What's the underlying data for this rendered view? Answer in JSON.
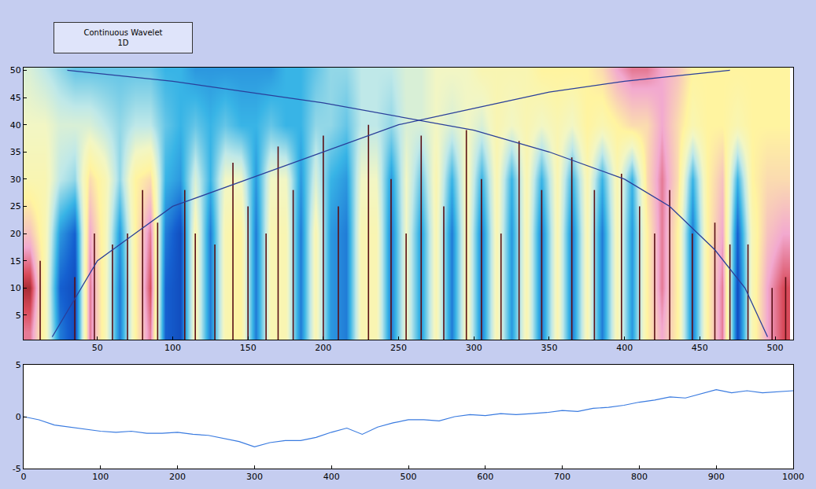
{
  "title": "Continuous Wavelet 1D",
  "chart_data": [
    {
      "type": "heatmap",
      "x": [
        5,
        15,
        25,
        35,
        45,
        55,
        65,
        75,
        85,
        95,
        105,
        115,
        125,
        135,
        145,
        155,
        165,
        175,
        185,
        195,
        205,
        215,
        225,
        235,
        245,
        255,
        265,
        275,
        285,
        295,
        305,
        315,
        325,
        335,
        345,
        355,
        365,
        375,
        385,
        395,
        405,
        415,
        425,
        435,
        445,
        455,
        465,
        475,
        485,
        495,
        505
      ],
      "y": [
        2,
        10,
        20,
        30,
        40,
        50
      ],
      "z": [
        [
          85,
          60,
          20,
          10,
          85,
          60,
          20,
          65,
          85,
          15,
          10,
          60,
          20,
          60,
          65,
          20,
          60,
          60,
          20,
          60,
          25,
          20,
          60,
          60,
          20,
          55,
          25,
          60,
          20,
          60,
          20,
          60,
          25,
          60,
          20,
          60,
          20,
          60,
          20,
          60,
          25,
          65,
          80,
          65,
          20,
          65,
          85,
          10,
          60,
          80,
          90
        ],
        [
          95,
          60,
          15,
          10,
          85,
          60,
          20,
          65,
          90,
          15,
          10,
          60,
          20,
          60,
          65,
          20,
          60,
          60,
          20,
          60,
          25,
          20,
          60,
          60,
          20,
          55,
          25,
          60,
          20,
          60,
          20,
          60,
          25,
          60,
          20,
          60,
          20,
          60,
          20,
          60,
          25,
          65,
          85,
          65,
          20,
          65,
          85,
          10,
          60,
          80,
          90
        ],
        [
          75,
          60,
          25,
          15,
          80,
          60,
          25,
          65,
          85,
          20,
          10,
          60,
          20,
          60,
          65,
          20,
          60,
          60,
          20,
          60,
          25,
          20,
          60,
          60,
          20,
          55,
          25,
          60,
          20,
          60,
          20,
          60,
          25,
          60,
          20,
          60,
          20,
          60,
          20,
          60,
          25,
          65,
          85,
          65,
          20,
          65,
          80,
          15,
          60,
          75,
          80
        ],
        [
          60,
          60,
          45,
          40,
          70,
          60,
          40,
          65,
          70,
          30,
          25,
          50,
          30,
          55,
          55,
          25,
          55,
          55,
          25,
          50,
          30,
          25,
          55,
          55,
          25,
          55,
          35,
          60,
          30,
          60,
          30,
          60,
          30,
          60,
          30,
          60,
          30,
          60,
          30,
          60,
          30,
          70,
          85,
          70,
          30,
          65,
          75,
          30,
          65,
          70,
          70
        ],
        [
          55,
          55,
          50,
          50,
          50,
          45,
          40,
          45,
          45,
          35,
          30,
          35,
          30,
          35,
          30,
          30,
          35,
          30,
          30,
          40,
          40,
          35,
          45,
          45,
          40,
          50,
          50,
          55,
          50,
          55,
          50,
          60,
          55,
          60,
          55,
          60,
          55,
          65,
          60,
          65,
          70,
          70,
          80,
          70,
          60,
          65,
          65,
          60,
          65,
          65,
          65
        ],
        [
          50,
          45,
          40,
          35,
          35,
          35,
          35,
          35,
          35,
          30,
          30,
          25,
          25,
          25,
          25,
          25,
          25,
          30,
          30,
          35,
          40,
          40,
          45,
          45,
          45,
          50,
          50,
          55,
          55,
          55,
          60,
          60,
          60,
          60,
          65,
          65,
          65,
          65,
          70,
          80,
          85,
          85,
          80,
          75,
          65,
          65,
          65,
          65,
          65,
          65,
          65
        ]
      ],
      "zlim": [
        0,
        100
      ],
      "xlim": [
        1,
        512
      ],
      "ylim": [
        0.5,
        50.5
      ],
      "xticks": [
        50,
        100,
        150,
        200,
        250,
        300,
        350,
        400,
        450,
        500
      ],
      "yticks": [
        5,
        10,
        15,
        20,
        25,
        30,
        35,
        40,
        45,
        50
      ],
      "maxima_lines": {
        "x": [
          12,
          35,
          48,
          60,
          70,
          80,
          90,
          108,
          115,
          128,
          140,
          150,
          162,
          170,
          180,
          200,
          210,
          230,
          245,
          255,
          265,
          280,
          295,
          305,
          318,
          330,
          345,
          365,
          380,
          398,
          410,
          420,
          430,
          445,
          460,
          470,
          482,
          498,
          507
        ],
        "top": [
          15,
          12,
          20,
          18,
          20,
          28,
          22,
          28,
          20,
          18,
          33,
          25,
          20,
          36,
          28,
          38,
          25,
          40,
          30,
          20,
          38,
          25,
          39,
          30,
          20,
          37,
          28,
          34,
          28,
          31,
          25,
          20,
          28,
          20,
          22,
          18,
          18,
          10,
          12
        ],
        "color": "#5a0f14"
      },
      "cone_of_influence": [
        {
          "x": [
            20,
            35,
            50,
            75,
            100,
            150,
            200,
            250,
            300,
            350,
            400,
            470
          ],
          "values": [
            1,
            8,
            15,
            20,
            25,
            30,
            35,
            40,
            43,
            46,
            48,
            50
          ],
          "color": "#2a3f9a"
        },
        {
          "x": [
            30,
            100,
            200,
            260,
            300,
            350,
            400,
            430,
            460,
            480,
            495
          ],
          "values": [
            50,
            48,
            44,
            41,
            39,
            35,
            30,
            25,
            17,
            10,
            1
          ],
          "color": "#2a3f9a"
        }
      ]
    },
    {
      "type": "line",
      "x": [
        0,
        20,
        40,
        60,
        80,
        100,
        120,
        140,
        160,
        180,
        200,
        220,
        240,
        260,
        280,
        300,
        320,
        340,
        360,
        380,
        400,
        420,
        440,
        460,
        480,
        500,
        520,
        540,
        560,
        580,
        600,
        620,
        640,
        660,
        680,
        700,
        720,
        740,
        760,
        780,
        800,
        820,
        840,
        860,
        880,
        900,
        920,
        940,
        960,
        980,
        1000
      ],
      "values": [
        0,
        -0.3,
        -0.8,
        -1.0,
        -1.2,
        -1.4,
        -1.5,
        -1.4,
        -1.6,
        -1.6,
        -1.5,
        -1.7,
        -1.8,
        -2.1,
        -2.4,
        -2.9,
        -2.5,
        -2.3,
        -2.3,
        -2.0,
        -1.5,
        -1.1,
        -1.7,
        -1.0,
        -0.6,
        -0.3,
        -0.3,
        -0.4,
        0.0,
        0.2,
        0.1,
        0.3,
        0.2,
        0.3,
        0.4,
        0.6,
        0.5,
        0.8,
        0.9,
        1.1,
        1.4,
        1.6,
        1.9,
        1.8,
        2.2,
        2.6,
        2.3,
        2.5,
        2.3,
        2.4,
        2.5
      ],
      "color": "#3a7be0",
      "xlim": [
        0,
        1000
      ],
      "ylim": [
        -5,
        5
      ],
      "xticks": [
        0,
        100,
        200,
        300,
        400,
        500,
        600,
        700,
        800,
        900,
        1000
      ],
      "yticks": [
        -5,
        0,
        5
      ]
    }
  ]
}
